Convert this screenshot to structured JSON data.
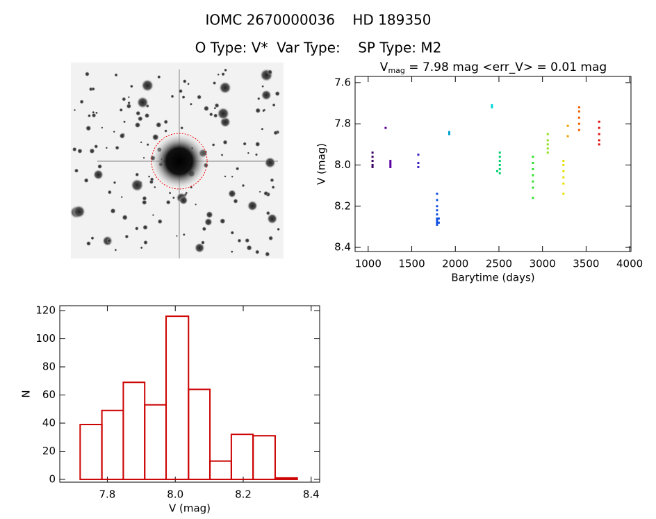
{
  "header": {
    "title": "IOMC 2670000036    HD 189350",
    "subtitle": "O Type: V*  Var Type:    SP Type: M2"
  },
  "chart_data": [
    {
      "type": "scatter",
      "title": {
        "main": "V",
        "sub": "mag",
        "rest": " = 7.98 mag <err_V> = 0.01 mag"
      },
      "x_label": "Barytime (days)",
      "y_label": "V (mag)",
      "xlim": [
        850,
        4015
      ],
      "xticks": [
        1000,
        1500,
        2000,
        2500,
        3000,
        3500,
        4000
      ],
      "ylim": [
        7.57,
        8.42
      ],
      "y_inverted": true,
      "yticks": [
        7.6,
        7.8,
        {
          "value": 8,
          "label": "8.0"
        },
        8.2,
        8.4
      ],
      "series": [
        {
          "color": "#3a0060",
          "x": [
            1050,
            1050,
            1050,
            1050,
            1050
          ],
          "values": [
            7.94,
            7.96,
            7.98,
            8.0,
            8.01
          ]
        },
        {
          "color": "#5a00a0",
          "x": [
            1200,
            1255,
            1255,
            1255,
            1255
          ],
          "values": [
            7.82,
            7.98,
            7.99,
            8.0,
            8.01
          ]
        },
        {
          "color": "#3a20c0",
          "x": [
            1575,
            1575,
            1575
          ],
          "values": [
            7.95,
            7.99,
            8.01
          ]
        },
        {
          "color": "#1050e0",
          "x": [
            1790,
            1790,
            1790,
            1790,
            1790,
            1790,
            1790,
            1790,
            1790,
            1810,
            1810
          ],
          "values": [
            8.14,
            8.17,
            8.2,
            8.22,
            8.24,
            8.26,
            8.27,
            8.28,
            8.29,
            8.26,
            8.28
          ]
        },
        {
          "color": "#00a0d0",
          "x": [
            1930,
            1930
          ],
          "values": [
            7.84,
            7.85
          ]
        },
        {
          "color": "#00d8d8",
          "x": [
            2420,
            2420
          ],
          "values": [
            7.71,
            7.72
          ]
        },
        {
          "color": "#00d070",
          "x": [
            2480,
            2510,
            2510,
            2510,
            2510,
            2510,
            2510
          ],
          "values": [
            8.03,
            7.94,
            7.96,
            7.98,
            8.0,
            8.02,
            8.04
          ]
        },
        {
          "color": "#30e030",
          "x": [
            2890,
            2890,
            2890,
            2890,
            2890,
            2890,
            2890
          ],
          "values": [
            7.96,
            7.99,
            8.02,
            8.05,
            8.08,
            8.11,
            8.16
          ]
        },
        {
          "color": "#90e020",
          "x": [
            3060,
            3060,
            3060,
            3060,
            3060
          ],
          "values": [
            7.85,
            7.88,
            7.9,
            7.92,
            7.94
          ]
        },
        {
          "color": "#e8e000",
          "x": [
            3240,
            3240,
            3240,
            3240,
            3240,
            3240
          ],
          "values": [
            7.98,
            8.0,
            8.03,
            8.06,
            8.09,
            8.14
          ]
        },
        {
          "color": "#f0a000",
          "x": [
            3290,
            3290
          ],
          "values": [
            7.81,
            7.86
          ]
        },
        {
          "color": "#f06000",
          "x": [
            3420,
            3420,
            3420,
            3420,
            3420
          ],
          "values": [
            7.72,
            7.74,
            7.77,
            7.8,
            7.83
          ]
        },
        {
          "color": "#e01010",
          "x": [
            3650,
            3650,
            3650,
            3650,
            3650
          ],
          "values": [
            7.79,
            7.82,
            7.85,
            7.88,
            7.9
          ]
        }
      ]
    },
    {
      "type": "histogram",
      "x_label": "V (mag)",
      "y_label": "N",
      "color": "#cc0000",
      "bins": [
        7.72,
        7.784,
        7.847,
        7.91,
        7.973,
        8.039,
        8.102,
        8.165,
        8.229,
        8.294,
        8.359
      ],
      "counts": [
        39,
        49,
        69,
        53,
        116,
        64,
        13,
        32,
        31,
        1
      ],
      "xlim": [
        7.66,
        8.425
      ],
      "xticks": [
        7.8,
        {
          "value": 8,
          "label": "8.0"
        },
        8.2,
        8.4
      ],
      "ylim": [
        -2,
        123.5
      ],
      "yticks": [
        0,
        20,
        40,
        60,
        80,
        100,
        120
      ]
    }
  ]
}
